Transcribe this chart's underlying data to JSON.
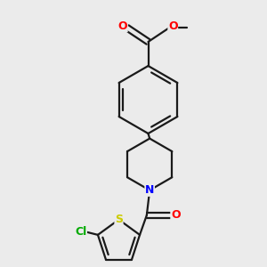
{
  "background_color": "#ebebeb",
  "bond_color": "#1a1a1a",
  "atom_colors": {
    "O": "#ff0000",
    "N": "#0000ff",
    "S": "#cccc00",
    "Cl": "#00aa00",
    "C": "#1a1a1a"
  },
  "figsize": [
    3.0,
    3.0
  ],
  "dpi": 100
}
